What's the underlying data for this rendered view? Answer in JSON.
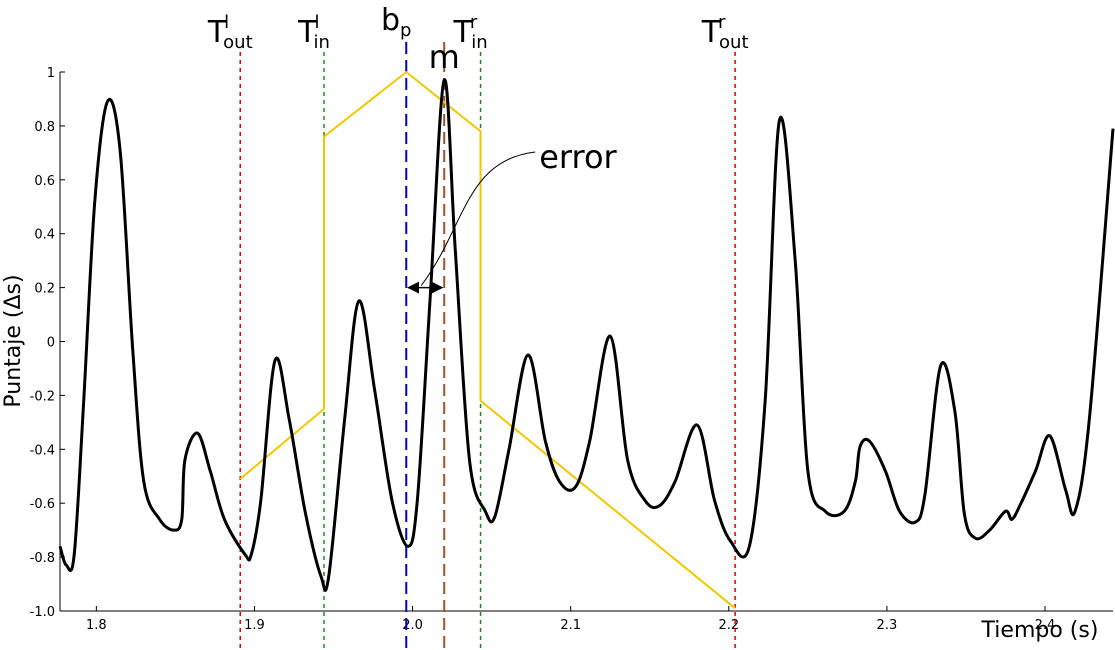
{
  "chart_data": {
    "type": "line",
    "x_label": "Tiempo (s)",
    "y_label": "Puntaje (Δs)",
    "xlim": [
      1.777,
      2.443
    ],
    "ylim": [
      -1,
      1
    ],
    "xticks": [
      1.8,
      1.9,
      {
        "value": 2,
        "label": "2.0"
      },
      2.1,
      2.2,
      2.3,
      2.4
    ],
    "yticks": [
      {
        "value": -1,
        "label": "-1.0"
      },
      -0.8,
      -0.6,
      -0.4,
      -0.2,
      0,
      0.2,
      0.4,
      0.6,
      0.8,
      1
    ],
    "series": [
      {
        "color": "#000000",
        "x": [
          1.777,
          1.781,
          1.786,
          1.792,
          1.799,
          1.807,
          1.815,
          1.823,
          1.83,
          1.84,
          1.849,
          1.854,
          1.856,
          1.864,
          1.872,
          1.881,
          1.894,
          1.898,
          1.904,
          1.913,
          1.922,
          1.932,
          1.942,
          1.947,
          1.957,
          1.966,
          1.976,
          1.987,
          1.997,
          2.003,
          2.011,
          2.02,
          2.027,
          2.036,
          2.046,
          2.052,
          2.061,
          2.073,
          2.084,
          2.093,
          2.103,
          2.112,
          2.125,
          2.136,
          2.147,
          2.156,
          2.166,
          2.18,
          2.191,
          2.201,
          2.213,
          2.223,
          2.232,
          2.242,
          2.25,
          2.261,
          2.273,
          2.28,
          2.283,
          2.289,
          2.299,
          2.308,
          2.318,
          2.324,
          2.334,
          2.343,
          2.349,
          2.356,
          2.365,
          2.375,
          2.379,
          2.384,
          2.394,
          2.403,
          2.413,
          2.419,
          2.428,
          2.443
        ],
        "values": [
          -0.76,
          -0.83,
          -0.79,
          -0.22,
          0.52,
          0.89,
          0.71,
          -0.03,
          -0.52,
          -0.66,
          -0.7,
          -0.66,
          -0.44,
          -0.34,
          -0.48,
          -0.66,
          -0.79,
          -0.79,
          -0.59,
          -0.07,
          -0.29,
          -0.63,
          -0.87,
          -0.87,
          -0.29,
          0.15,
          -0.18,
          -0.59,
          -0.76,
          -0.59,
          0.15,
          0.97,
          0.34,
          -0.44,
          -0.63,
          -0.65,
          -0.4,
          -0.05,
          -0.37,
          -0.52,
          -0.54,
          -0.37,
          0.02,
          -0.44,
          -0.59,
          -0.61,
          -0.52,
          -0.31,
          -0.59,
          -0.74,
          -0.76,
          -0.22,
          0.82,
          0.3,
          -0.48,
          -0.63,
          -0.63,
          -0.52,
          -0.39,
          -0.37,
          -0.48,
          -0.63,
          -0.67,
          -0.57,
          -0.09,
          -0.26,
          -0.64,
          -0.73,
          -0.7,
          -0.63,
          -0.66,
          -0.61,
          -0.48,
          -0.35,
          -0.55,
          -0.63,
          -0.29,
          0.79
        ]
      },
      {
        "color": "#f0c800",
        "x": [
          1.891,
          1.944,
          1.944,
          1.996,
          2.043,
          2.043,
          2.204
        ],
        "values": [
          -0.51,
          -0.25,
          0.76,
          1,
          0.78,
          -0.22,
          -0.99
        ]
      }
    ],
    "vlines": [
      {
        "x": 1.891,
        "color": "#e00000",
        "text": {
          "base": "T",
          "sub": "out",
          "sup": "l"
        }
      },
      {
        "x": 1.944,
        "color": "#1a8a1a",
        "text": {
          "base": "T",
          "sub": "in",
          "sup": "l"
        }
      },
      {
        "x": 1.996,
        "color": "#0000cc",
        "text": {
          "base": "b",
          "sub": "p"
        }
      },
      {
        "x": 2.02,
        "color": "#a0522d",
        "text": {
          "base": "m"
        }
      },
      {
        "x": 2.043,
        "color": "#1a8a1a",
        "text": {
          "base": "T",
          "sub": "in",
          "sup": "r"
        }
      },
      {
        "x": 2.204,
        "color": "#e00000",
        "text": {
          "base": "T",
          "sub": "out",
          "sup": "r"
        }
      }
    ],
    "arrow": {
      "text": "error",
      "x": [
        1.996,
        2.02
      ],
      "y": 0.2
    }
  }
}
